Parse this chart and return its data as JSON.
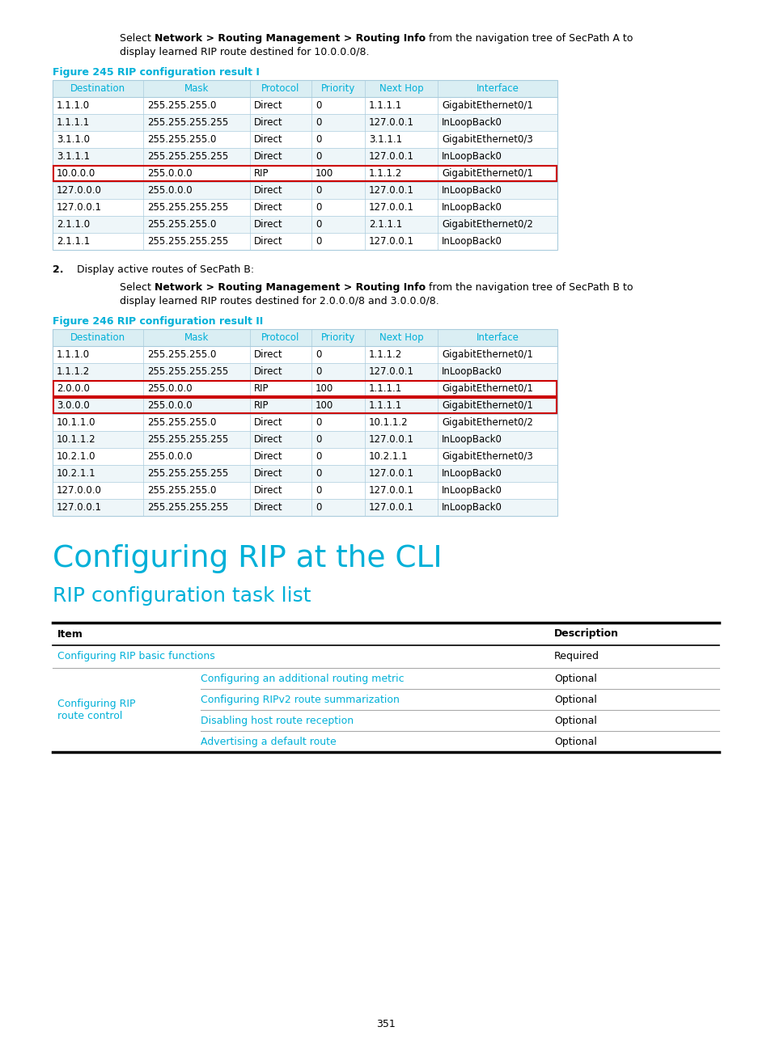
{
  "page_background": "#ffffff",
  "cyan_color": "#00b0d8",
  "header_bg": "#daeef3",
  "table_border": "#aaccdd",
  "row_alt_bg": "#eef6f9",
  "row_white_bg": "#ffffff",
  "red_border": "#cc0000",
  "text_color": "#000000",
  "gray_line": "#aaaaaa",
  "black": "#000000",
  "page_number": "351",
  "figure1_label": "Figure 245 RIP configuration result I",
  "table1_headers": [
    "Destination",
    "Mask",
    "Protocol",
    "Priority",
    "Next Hop",
    "Interface"
  ],
  "table1_col_widths": [
    112,
    132,
    76,
    66,
    90,
    148
  ],
  "table1_rows": [
    [
      "1.1.1.0",
      "255.255.255.0",
      "Direct",
      "0",
      "1.1.1.1",
      "GigabitEthernet0/1"
    ],
    [
      "1.1.1.1",
      "255.255.255.255",
      "Direct",
      "0",
      "127.0.0.1",
      "InLoopBack0"
    ],
    [
      "3.1.1.0",
      "255.255.255.0",
      "Direct",
      "0",
      "3.1.1.1",
      "GigabitEthernet0/3"
    ],
    [
      "3.1.1.1",
      "255.255.255.255",
      "Direct",
      "0",
      "127.0.0.1",
      "InLoopBack0"
    ],
    [
      "10.0.0.0",
      "255.0.0.0",
      "RIP",
      "100",
      "1.1.1.2",
      "GigabitEthernet0/1"
    ],
    [
      "127.0.0.0",
      "255.0.0.0",
      "Direct",
      "0",
      "127.0.0.1",
      "InLoopBack0"
    ],
    [
      "127.0.0.1",
      "255.255.255.255",
      "Direct",
      "0",
      "127.0.0.1",
      "InLoopBack0"
    ],
    [
      "2.1.1.0",
      "255.255.255.0",
      "Direct",
      "0",
      "2.1.1.1",
      "GigabitEthernet0/2"
    ],
    [
      "2.1.1.1",
      "255.255.255.255",
      "Direct",
      "0",
      "127.0.0.1",
      "InLoopBack0"
    ]
  ],
  "table1_red_rows": [
    4
  ],
  "figure2_label": "Figure 246 RIP configuration result II",
  "table2_headers": [
    "Destination",
    "Mask",
    "Protocol",
    "Priority",
    "Next Hop",
    "Interface"
  ],
  "table2_col_widths": [
    112,
    132,
    76,
    66,
    90,
    148
  ],
  "table2_rows": [
    [
      "1.1.1.0",
      "255.255.255.0",
      "Direct",
      "0",
      "1.1.1.2",
      "GigabitEthernet0/1"
    ],
    [
      "1.1.1.2",
      "255.255.255.255",
      "Direct",
      "0",
      "127.0.0.1",
      "InLoopBack0"
    ],
    [
      "2.0.0.0",
      "255.0.0.0",
      "RIP",
      "100",
      "1.1.1.1",
      "GigabitEthernet0/1"
    ],
    [
      "3.0.0.0",
      "255.0.0.0",
      "RIP",
      "100",
      "1.1.1.1",
      "GigabitEthernet0/1"
    ],
    [
      "10.1.1.0",
      "255.255.255.0",
      "Direct",
      "0",
      "10.1.1.2",
      "GigabitEthernet0/2"
    ],
    [
      "10.1.1.2",
      "255.255.255.255",
      "Direct",
      "0",
      "127.0.0.1",
      "InLoopBack0"
    ],
    [
      "10.2.1.0",
      "255.0.0.0",
      "Direct",
      "0",
      "10.2.1.1",
      "GigabitEthernet0/3"
    ],
    [
      "10.2.1.1",
      "255.255.255.255",
      "Direct",
      "0",
      "127.0.0.1",
      "InLoopBack0"
    ],
    [
      "127.0.0.0",
      "255.255.255.0",
      "Direct",
      "0",
      "127.0.0.1",
      "InLoopBack0"
    ],
    [
      "127.0.0.1",
      "255.255.255.255",
      "Direct",
      "0",
      "127.0.0.1",
      "InLoopBack0"
    ]
  ],
  "table2_red_rows": [
    2,
    3
  ],
  "section_title": "Configuring RIP at the CLI",
  "subsection_title": "RIP configuration task list",
  "task_col1_header": "Item",
  "task_col2_header": "Description",
  "task_row1_text": "Configuring RIP basic functions",
  "task_row1_desc": "Required",
  "task_left_label_line1": "Configuring RIP",
  "task_left_label_line2": "route control",
  "task_sub_items": [
    {
      "text": "Configuring an additional routing metric",
      "desc": "Optional"
    },
    {
      "text": "Configuring RIPv2 route summarization",
      "desc": "Optional"
    },
    {
      "text": "Disabling host route reception",
      "desc": "Optional"
    },
    {
      "text": "Advertising a default route",
      "desc": "Optional"
    }
  ]
}
